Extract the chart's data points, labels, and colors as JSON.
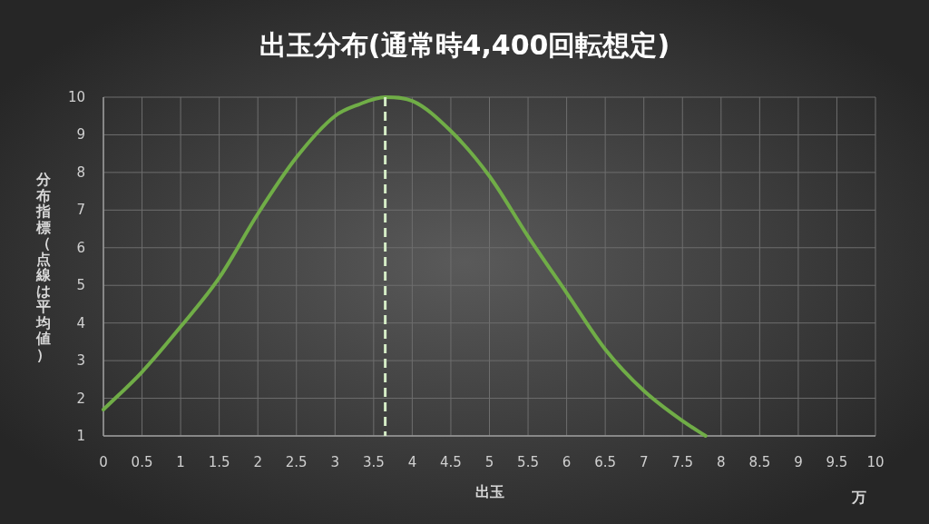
{
  "chart_data": {
    "type": "line",
    "title": "出玉分布(通常時4,400回転想定)",
    "xlabel": "出玉",
    "ylabel": "分布指標（点線は平均値）",
    "annotations": [
      "万"
    ],
    "x": [
      0,
      0.5,
      1,
      1.5,
      2,
      2.5,
      3,
      3.3,
      3.65,
      4,
      4.5,
      5,
      5.5,
      6,
      6.5,
      7,
      7.5,
      7.8
    ],
    "series": [
      {
        "color": "#70ad47",
        "values": [
          1.7,
          2.7,
          3.9,
          5.2,
          6.9,
          8.4,
          9.5,
          9.8,
          10,
          9.9,
          9.1,
          7.9,
          6.3,
          4.8,
          3.3,
          2.2,
          1.4,
          1
        ]
      }
    ],
    "xlim": [
      0,
      10
    ],
    "xticks": [
      0,
      0.5,
      1,
      1.5,
      2,
      2.5,
      3,
      3.5,
      4,
      4.5,
      5,
      5.5,
      6,
      6.5,
      7,
      7.5,
      8,
      8.5,
      9,
      9.5,
      10
    ],
    "ylim": [
      1,
      10
    ],
    "yticks": [
      1,
      2,
      3,
      4,
      5,
      6,
      7,
      8,
      9,
      10
    ],
    "grid": true,
    "marker": "none",
    "line_style": "solid",
    "ref_lines": [
      {
        "axis": "x",
        "value": 3.65,
        "color": "#d5ecc6",
        "line_style": "dashed"
      }
    ]
  }
}
